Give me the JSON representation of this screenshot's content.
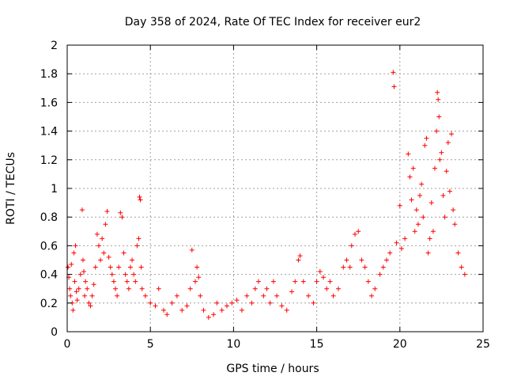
{
  "chart_data": {
    "type": "scatter",
    "title": "Day 358 of 2024, Rate Of TEC Index for receiver eur2",
    "xlabel": "GPS time / hours",
    "ylabel": "ROTI / TECUs",
    "xlim": [
      0,
      25
    ],
    "ylim": [
      0,
      2
    ],
    "x_ticks": [
      0,
      5,
      10,
      15,
      20,
      25
    ],
    "y_ticks": [
      0,
      0.2,
      0.4,
      0.6,
      0.8,
      1,
      1.2,
      1.4,
      1.6,
      1.8,
      2
    ],
    "x_tick_labels": [
      "0",
      "5",
      "10",
      "15",
      "20",
      "25"
    ],
    "y_tick_labels": [
      "0",
      "0.2",
      "0.4",
      "0.6",
      "0.8",
      "1",
      "1.2",
      "1.4",
      "1.6",
      "1.8",
      "2"
    ],
    "grid": true,
    "marker": "+",
    "marker_color": "#ff0000",
    "points": [
      [
        0.05,
        0.45
      ],
      [
        0.1,
        0.38
      ],
      [
        0.15,
        0.3
      ],
      [
        0.2,
        0.25
      ],
      [
        0.25,
        0.47
      ],
      [
        0.3,
        0.2
      ],
      [
        0.35,
        0.15
      ],
      [
        0.4,
        0.55
      ],
      [
        0.45,
        0.35
      ],
      [
        0.5,
        0.6
      ],
      [
        0.55,
        0.28
      ],
      [
        0.6,
        0.22
      ],
      [
        0.7,
        0.3
      ],
      [
        0.8,
        0.4
      ],
      [
        0.9,
        0.85
      ],
      [
        0.95,
        0.5
      ],
      [
        1.0,
        0.42
      ],
      [
        1.05,
        0.25
      ],
      [
        1.1,
        0.35
      ],
      [
        1.2,
        0.3
      ],
      [
        1.3,
        0.2
      ],
      [
        1.4,
        0.18
      ],
      [
        1.5,
        0.25
      ],
      [
        1.6,
        0.33
      ],
      [
        1.7,
        0.45
      ],
      [
        1.8,
        0.68
      ],
      [
        1.9,
        0.6
      ],
      [
        2.0,
        0.5
      ],
      [
        2.1,
        0.65
      ],
      [
        2.2,
        0.55
      ],
      [
        2.3,
        0.75
      ],
      [
        2.4,
        0.84
      ],
      [
        2.5,
        0.52
      ],
      [
        2.6,
        0.45
      ],
      [
        2.7,
        0.4
      ],
      [
        2.8,
        0.35
      ],
      [
        2.9,
        0.3
      ],
      [
        3.0,
        0.25
      ],
      [
        3.1,
        0.45
      ],
      [
        3.2,
        0.83
      ],
      [
        3.3,
        0.8
      ],
      [
        3.4,
        0.55
      ],
      [
        3.5,
        0.4
      ],
      [
        3.6,
        0.35
      ],
      [
        3.7,
        0.3
      ],
      [
        3.8,
        0.45
      ],
      [
        3.9,
        0.5
      ],
      [
        4.0,
        0.4
      ],
      [
        4.1,
        0.35
      ],
      [
        4.2,
        0.6
      ],
      [
        4.3,
        0.65
      ],
      [
        4.35,
        0.94
      ],
      [
        4.4,
        0.92
      ],
      [
        4.45,
        0.45
      ],
      [
        4.5,
        0.3
      ],
      [
        4.7,
        0.25
      ],
      [
        5.0,
        0.2
      ],
      [
        5.3,
        0.18
      ],
      [
        5.5,
        0.3
      ],
      [
        5.8,
        0.15
      ],
      [
        6.0,
        0.12
      ],
      [
        6.3,
        0.2
      ],
      [
        6.6,
        0.25
      ],
      [
        6.9,
        0.15
      ],
      [
        7.2,
        0.18
      ],
      [
        7.4,
        0.3
      ],
      [
        7.5,
        0.57
      ],
      [
        7.7,
        0.35
      ],
      [
        7.8,
        0.45
      ],
      [
        7.9,
        0.38
      ],
      [
        8.0,
        0.25
      ],
      [
        8.2,
        0.15
      ],
      [
        8.5,
        0.1
      ],
      [
        8.8,
        0.12
      ],
      [
        9.0,
        0.2
      ],
      [
        9.3,
        0.15
      ],
      [
        9.6,
        0.18
      ],
      [
        9.9,
        0.2
      ],
      [
        10.2,
        0.22
      ],
      [
        10.5,
        0.15
      ],
      [
        10.8,
        0.25
      ],
      [
        11.1,
        0.2
      ],
      [
        11.3,
        0.3
      ],
      [
        11.5,
        0.35
      ],
      [
        11.8,
        0.25
      ],
      [
        12.0,
        0.3
      ],
      [
        12.2,
        0.2
      ],
      [
        12.4,
        0.35
      ],
      [
        12.6,
        0.25
      ],
      [
        12.9,
        0.18
      ],
      [
        13.2,
        0.15
      ],
      [
        13.5,
        0.28
      ],
      [
        13.7,
        0.35
      ],
      [
        13.9,
        0.5
      ],
      [
        14.0,
        0.53
      ],
      [
        14.2,
        0.35
      ],
      [
        14.5,
        0.25
      ],
      [
        14.8,
        0.2
      ],
      [
        15.0,
        0.35
      ],
      [
        15.2,
        0.42
      ],
      [
        15.4,
        0.38
      ],
      [
        15.6,
        0.3
      ],
      [
        15.8,
        0.35
      ],
      [
        16.0,
        0.25
      ],
      [
        16.3,
        0.3
      ],
      [
        16.6,
        0.45
      ],
      [
        16.8,
        0.5
      ],
      [
        17.0,
        0.45
      ],
      [
        17.1,
        0.6
      ],
      [
        17.3,
        0.68
      ],
      [
        17.5,
        0.7
      ],
      [
        17.7,
        0.5
      ],
      [
        17.9,
        0.45
      ],
      [
        18.1,
        0.35
      ],
      [
        18.3,
        0.25
      ],
      [
        18.5,
        0.3
      ],
      [
        18.8,
        0.4
      ],
      [
        19.0,
        0.45
      ],
      [
        19.2,
        0.5
      ],
      [
        19.4,
        0.55
      ],
      [
        19.6,
        1.81
      ],
      [
        19.65,
        1.71
      ],
      [
        19.8,
        0.62
      ],
      [
        20.0,
        0.88
      ],
      [
        20.1,
        0.58
      ],
      [
        20.3,
        0.65
      ],
      [
        20.5,
        1.24
      ],
      [
        20.6,
        1.08
      ],
      [
        20.7,
        0.92
      ],
      [
        20.8,
        1.14
      ],
      [
        20.9,
        0.7
      ],
      [
        21.0,
        0.85
      ],
      [
        21.1,
        0.75
      ],
      [
        21.2,
        0.95
      ],
      [
        21.3,
        1.03
      ],
      [
        21.4,
        0.8
      ],
      [
        21.5,
        1.3
      ],
      [
        21.6,
        1.35
      ],
      [
        21.7,
        0.55
      ],
      [
        21.8,
        0.65
      ],
      [
        21.9,
        0.9
      ],
      [
        22.0,
        0.7
      ],
      [
        22.1,
        1.14
      ],
      [
        22.2,
        1.4
      ],
      [
        22.25,
        1.67
      ],
      [
        22.3,
        1.62
      ],
      [
        22.35,
        1.5
      ],
      [
        22.4,
        1.2
      ],
      [
        22.5,
        1.25
      ],
      [
        22.6,
        0.95
      ],
      [
        22.7,
        0.8
      ],
      [
        22.8,
        1.12
      ],
      [
        22.9,
        1.32
      ],
      [
        23.0,
        0.98
      ],
      [
        23.1,
        1.38
      ],
      [
        23.2,
        0.85
      ],
      [
        23.3,
        0.75
      ],
      [
        23.5,
        0.55
      ],
      [
        23.7,
        0.45
      ],
      [
        23.9,
        0.4
      ]
    ]
  }
}
